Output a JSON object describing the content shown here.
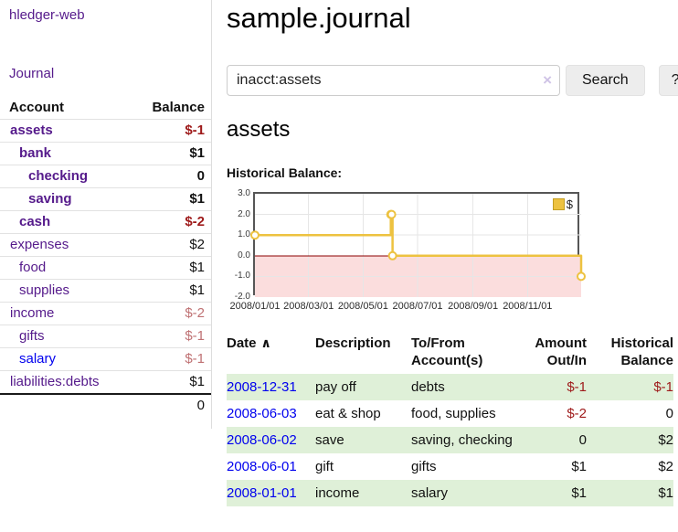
{
  "sidebar": {
    "app_title": "hledger-web",
    "journal_link": "Journal",
    "accounts_table": {
      "header_account": "Account",
      "header_balance": "Balance",
      "rows": [
        {
          "name": "assets",
          "balance": "$-1",
          "indent": 0,
          "bold": true,
          "link": "purple"
        },
        {
          "name": "bank",
          "balance": "$1",
          "indent": 1,
          "bold": true,
          "link": "purple"
        },
        {
          "name": "checking",
          "balance": "0",
          "indent": 2,
          "bold": true,
          "link": "purple"
        },
        {
          "name": "saving",
          "balance": "$1",
          "indent": 2,
          "bold": true,
          "link": "purple"
        },
        {
          "name": "cash",
          "balance": "$-2",
          "indent": 1,
          "bold": true,
          "link": "purple"
        },
        {
          "name": "expenses",
          "balance": "$2",
          "indent": 0,
          "bold": false,
          "link": "purple"
        },
        {
          "name": "food",
          "balance": "$1",
          "indent": 1,
          "bold": false,
          "link": "purple"
        },
        {
          "name": "supplies",
          "balance": "$1",
          "indent": 1,
          "bold": false,
          "link": "purple"
        },
        {
          "name": "income",
          "balance": "$-2",
          "indent": 0,
          "bold": false,
          "link": "purple"
        },
        {
          "name": "gifts",
          "balance": "$-1",
          "indent": 1,
          "bold": false,
          "link": "purple"
        },
        {
          "name": "salary",
          "balance": "$-1",
          "indent": 1,
          "bold": false,
          "link": "blue"
        },
        {
          "name": "liabilities:debts",
          "balance": "$1",
          "indent": 0,
          "bold": false,
          "link": "purple"
        }
      ],
      "total": "0"
    }
  },
  "main": {
    "title": "sample.journal",
    "search": {
      "value": "inacct:assets",
      "clear_icon": "×",
      "button_label": "Search",
      "help_label": "?"
    },
    "account_heading": "assets",
    "chart_label": "Historical Balance:"
  },
  "chart_data": {
    "type": "line",
    "title": "Historical Balance of assets",
    "series": [
      {
        "name": "$",
        "step": true,
        "points": [
          [
            "2008-01-01",
            1
          ],
          [
            "2008-06-01",
            2
          ],
          [
            "2008-06-02",
            2
          ],
          [
            "2008-06-03",
            0
          ],
          [
            "2008-12-31",
            -1
          ]
        ]
      }
    ],
    "x_range": [
      "2008-01-01",
      "2008-12-31"
    ],
    "ylim": [
      -2,
      3
    ],
    "y_ticks": [
      3,
      2,
      1,
      0,
      -1,
      -2
    ],
    "x_ticks": [
      "2008/01/01",
      "2008/03/01",
      "2008/05/01",
      "2008/07/01",
      "2008/09/01",
      "2008/11/01"
    ],
    "grid": true,
    "legend_position": "top-right",
    "legend_label": "$",
    "line_color": "#edc240",
    "marker_fill": "#ffffff",
    "negative_region_fill": "#fbdddd",
    "zero_line_color": "#8b0000",
    "grid_color": "#e6e6e6"
  },
  "transactions": {
    "headers": {
      "date": "Date",
      "sort_icon": "∧",
      "description": "Description",
      "tofrom_line1": "To/From",
      "tofrom_line2": "Account(s)",
      "amount_line1": "Amount",
      "amount_line2": "Out/In",
      "balance_line1": "Historical",
      "balance_line2": "Balance"
    },
    "rows": [
      {
        "date": "2008-12-31",
        "description": "pay off",
        "accounts": "debts",
        "amount": "$-1",
        "balance": "$-1"
      },
      {
        "date": "2008-06-03",
        "description": "eat & shop",
        "accounts": "food, supplies",
        "amount": "$-2",
        "balance": "0"
      },
      {
        "date": "2008-06-02",
        "description": "save",
        "accounts": "saving, checking",
        "amount": "0",
        "balance": "$2"
      },
      {
        "date": "2008-06-01",
        "description": "gift",
        "accounts": "gifts",
        "amount": "$1",
        "balance": "$2"
      },
      {
        "date": "2008-01-01",
        "description": "income",
        "accounts": "salary",
        "amount": "$1",
        "balance": "$1"
      }
    ]
  },
  "colors": {
    "link_purple": "#551a8b",
    "link_blue": "#0000ee",
    "negative_strong": "#9e1a1a",
    "negative_muted": "#bf7173",
    "row_green": "#dff0d8",
    "chart_gold": "#edc240",
    "chart_pink": "#fbdddd"
  }
}
